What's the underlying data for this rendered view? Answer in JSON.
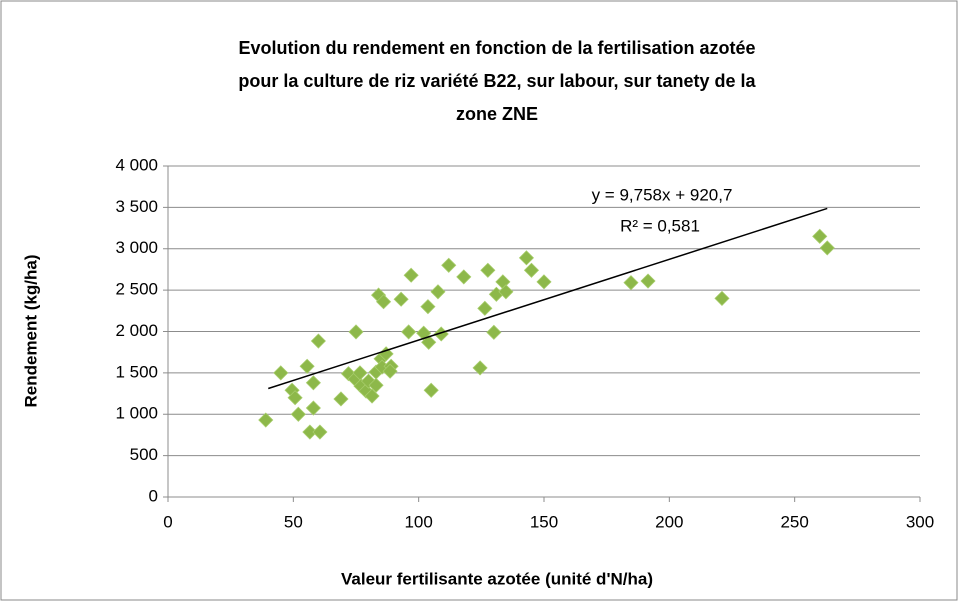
{
  "chart_data": {
    "type": "scatter",
    "title": [
      "Evolution du rendement en fonction de la fertilisation azotée",
      "pour la culture de riz variété B22, sur labour, sur tanety de la",
      "zone ZNE"
    ],
    "xlabel": "Valeur fertilisante azotée (unité d'N/ha)",
    "ylabel": "Rendement (kg/ha)",
    "color": "#8db84a",
    "xlim": [
      0,
      300
    ],
    "xticks": [
      0,
      50,
      100,
      150,
      200,
      250,
      300
    ],
    "ylim": [
      0,
      4000
    ],
    "yticks": [
      0,
      500,
      {
        "value": 1000,
        "label": "1 000"
      },
      {
        "value": 1500,
        "label": "1 500"
      },
      {
        "value": 2000,
        "label": "2 000"
      },
      {
        "value": 2500,
        "label": "2 500"
      },
      {
        "value": 3000,
        "label": "3 000"
      },
      {
        "value": 3500,
        "label": "3 500"
      },
      {
        "value": 4000,
        "label": "4 000"
      }
    ],
    "grid": true,
    "x": [
      39,
      45,
      49.5,
      50.7,
      52,
      55.5,
      56.6,
      58,
      58,
      60,
      60.6,
      69,
      72,
      75,
      74.6,
      76.6,
      77,
      79,
      80,
      81.4,
      83,
      83,
      84,
      85,
      85.4,
      86,
      87,
      89,
      88.6,
      93,
      96,
      97,
      102,
      103.7,
      104,
      105,
      107.7,
      109,
      112,
      118,
      124.5,
      126.4,
      127.6,
      130,
      131,
      133.6,
      134.8,
      143,
      145,
      150,
      184.7,
      191.5,
      221,
      260,
      263
    ],
    "values": [
      930,
      1500,
      1290,
      1200,
      1000,
      1580,
      785,
      1380,
      1075,
      1885,
      785,
      1185,
      1490,
      1995,
      1425,
      1500,
      1340,
      1280,
      1400,
      1220,
      1510,
      1350,
      2440,
      1670,
      1570,
      2360,
      1730,
      1580,
      1520,
      2390,
      1995,
      2680,
      1980,
      2300,
      1870,
      1290,
      2480,
      1970,
      2800,
      2660,
      1560,
      2280,
      2740,
      1990,
      2450,
      2600,
      2480,
      2890,
      2740,
      2600,
      2590,
      2610,
      2400,
      3150,
      3010
    ],
    "trendline": {
      "equation": "y = 9,758x + 920,7",
      "r2": "R² = 0,581",
      "x": [
        40,
        263
      ],
      "slope": 9.758,
      "intercept": 920.7
    }
  }
}
